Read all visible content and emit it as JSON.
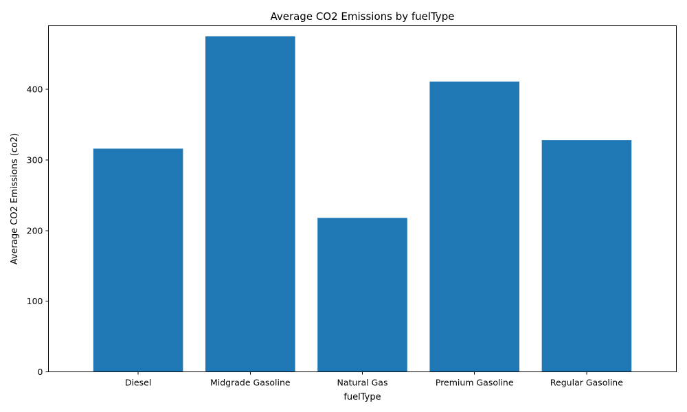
{
  "chart_data": {
    "type": "bar",
    "title": "Average CO2 Emissions by fuelType",
    "xlabel": "fuelType",
    "ylabel": "Average CO2 Emissions (co2)",
    "categories": [
      "Diesel",
      "Midgrade Gasoline",
      "Natural Gas",
      "Premium Gasoline",
      "Regular Gasoline"
    ],
    "values": [
      316,
      475,
      218,
      411,
      328
    ],
    "ylim": [
      0,
      490
    ],
    "yticks": [
      0,
      100,
      200,
      300,
      400
    ],
    "bar_color": "#1f77b4",
    "grid": false,
    "legend": "none"
  }
}
